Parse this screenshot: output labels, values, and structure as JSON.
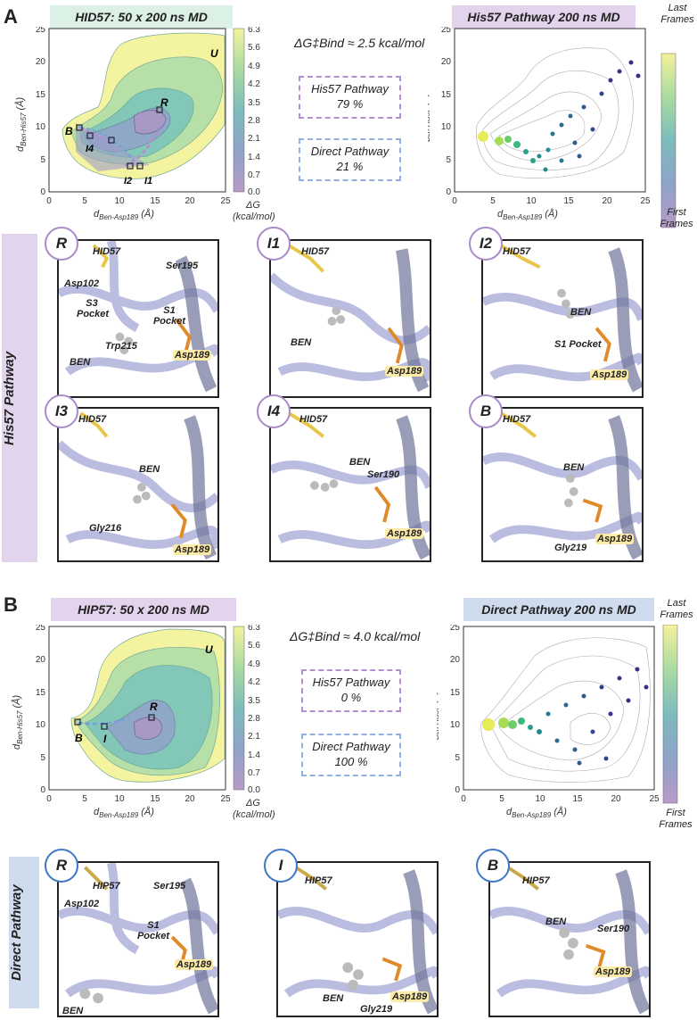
{
  "panel_a": {
    "letter": "A",
    "fes_title": "HID57: 50 x 200 ns MD",
    "path_title": "His57 Pathway 200 ns MD",
    "energy_label": "ΔG‡Bind ≈ 2.5 kcal/mol",
    "his57_box": {
      "name": "His57 Pathway",
      "value": "79 %"
    },
    "direct_box": {
      "name": "Direct Pathway",
      "value": "21 %"
    },
    "side_label": "His57 Pathway",
    "fes_points": [
      "U",
      "R",
      "B",
      "I4",
      "I2",
      "I1"
    ],
    "snapshots": [
      {
        "badge": "R",
        "labels": [
          "HID57",
          "Ser195",
          "Asp102",
          "S3 Pocket",
          "S1 Pocket",
          "Trp215",
          "BEN",
          "Asp189"
        ]
      },
      {
        "badge": "I1",
        "labels": [
          "HID57",
          "BEN",
          "Asp189"
        ]
      },
      {
        "badge": "I2",
        "labels": [
          "HID57",
          "BEN",
          "S1 Pocket",
          "Asp189"
        ]
      },
      {
        "badge": "I3",
        "labels": [
          "HID57",
          "BEN",
          "Gly216",
          "Asp189"
        ]
      },
      {
        "badge": "I4",
        "labels": [
          "HID57",
          "BEN",
          "Ser190",
          "Asp189"
        ]
      },
      {
        "badge": "B",
        "labels": [
          "HID57",
          "BEN",
          "Gly219",
          "Asp189"
        ]
      }
    ]
  },
  "panel_b": {
    "letter": "B",
    "fes_title": "HIP57: 50 x 200 ns MD",
    "path_title": "Direct Pathway 200 ns MD",
    "energy_label": "ΔG‡Bind ≈ 4.0 kcal/mol",
    "his57_box": {
      "name": "His57 Pathway",
      "value": "0 %"
    },
    "direct_box": {
      "name": "Direct Pathway",
      "value": "100 %"
    },
    "side_label": "Direct Pathway",
    "fes_points": [
      "U",
      "R",
      "B",
      "I"
    ],
    "snapshots": [
      {
        "badge": "R",
        "labels": [
          "HIP57",
          "Ser195",
          "Asp102",
          "S1 Pocket",
          "Asp189",
          "BEN"
        ]
      },
      {
        "badge": "I",
        "labels": [
          "HIP57",
          "BEN",
          "Asp189",
          "Gly219"
        ]
      },
      {
        "badge": "B",
        "labels": [
          "HIP57",
          "BEN",
          "Ser190",
          "Asp189"
        ]
      }
    ]
  },
  "colorbar": {
    "label": "ΔG",
    "unit": "(kcal/mol)",
    "ticks": [
      "6.3",
      "5.6",
      "4.9",
      "4.2",
      "3.5",
      "2.8",
      "2.1",
      "1.4",
      "0.7",
      "0.0"
    ],
    "last_frames": "Last Frames",
    "first_frames": "First Frames"
  },
  "chart_data": [
    {
      "type": "heatmap",
      "title": "HID57: 50 x 200 ns MD",
      "xlabel": "d Ben-Asp189 (Å)",
      "ylabel": "d Ben-His57 (Å)",
      "xlim": [
        0,
        25
      ],
      "ylim": [
        0,
        25
      ],
      "xticks": [
        0,
        5,
        10,
        15,
        20,
        25
      ],
      "yticks": [
        0,
        5,
        10,
        15,
        20,
        25
      ],
      "colorbar_range": [
        0.0,
        6.3
      ]
    },
    {
      "type": "scatter",
      "title": "His57 Pathway 200 ns MD",
      "xlabel": "d Ben-Asp189 (Å)",
      "ylabel": "d Ben-His57 (Å)",
      "xlim": [
        0,
        25
      ],
      "ylim": [
        0,
        25
      ],
      "xticks": [
        0,
        5,
        10,
        15,
        20,
        25
      ],
      "yticks": [
        0,
        5,
        10,
        15,
        20,
        25
      ]
    },
    {
      "type": "heatmap",
      "title": "HIP57: 50 x 200 ns MD",
      "xlabel": "d Ben-Asp189 (Å)",
      "ylabel": "d Ben-His57 (Å)",
      "xlim": [
        0,
        25
      ],
      "ylim": [
        0,
        25
      ],
      "xticks": [
        0,
        5,
        10,
        15,
        20,
        25
      ],
      "yticks": [
        0,
        5,
        10,
        15,
        20,
        25
      ],
      "colorbar_range": [
        0.0,
        6.3
      ]
    },
    {
      "type": "scatter",
      "title": "Direct Pathway 200 ns MD",
      "xlabel": "d Ben-Asp189 (Å)",
      "ylabel": "d Ben-His57 (Å)",
      "xlim": [
        0,
        25
      ],
      "ylim": [
        0,
        25
      ],
      "xticks": [
        0,
        5,
        10,
        15,
        20,
        25
      ],
      "yticks": [
        0,
        5,
        10,
        15,
        20,
        25
      ]
    }
  ]
}
